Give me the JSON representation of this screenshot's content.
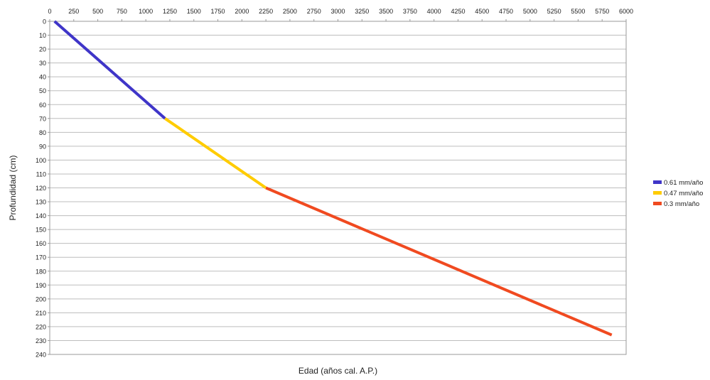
{
  "chart_data": {
    "type": "line",
    "title": "",
    "xlabel": "Edad (años cal. A.P.)",
    "ylabel": "Profundidad (cm)",
    "xlim": [
      0,
      6000
    ],
    "ylim": [
      0,
      240
    ],
    "y_inverted": true,
    "x_axis_position": "top",
    "x_ticks": [
      0,
      250,
      500,
      750,
      1000,
      1250,
      1500,
      1750,
      2000,
      2250,
      2500,
      2750,
      3000,
      3250,
      3500,
      3750,
      4000,
      4250,
      4500,
      4750,
      5000,
      5250,
      5500,
      5750,
      6000
    ],
    "y_ticks": [
      0,
      10,
      20,
      30,
      40,
      50,
      60,
      70,
      80,
      90,
      100,
      110,
      120,
      130,
      140,
      150,
      160,
      170,
      180,
      190,
      200,
      210,
      220,
      230,
      240
    ],
    "grid": true,
    "legend_position": "right",
    "series": [
      {
        "name": "0.61 mm/año",
        "color": "#3f35c8",
        "points": [
          [
            50,
            0
          ],
          [
            1200,
            70
          ]
        ]
      },
      {
        "name": "0.47 mm/año",
        "color": "#ffcc00",
        "points": [
          [
            1200,
            70
          ],
          [
            2250,
            120
          ]
        ]
      },
      {
        "name": "0.3 mm/año",
        "color": "#f04a20",
        "points": [
          [
            2250,
            120
          ],
          [
            5850,
            226
          ]
        ]
      }
    ]
  }
}
